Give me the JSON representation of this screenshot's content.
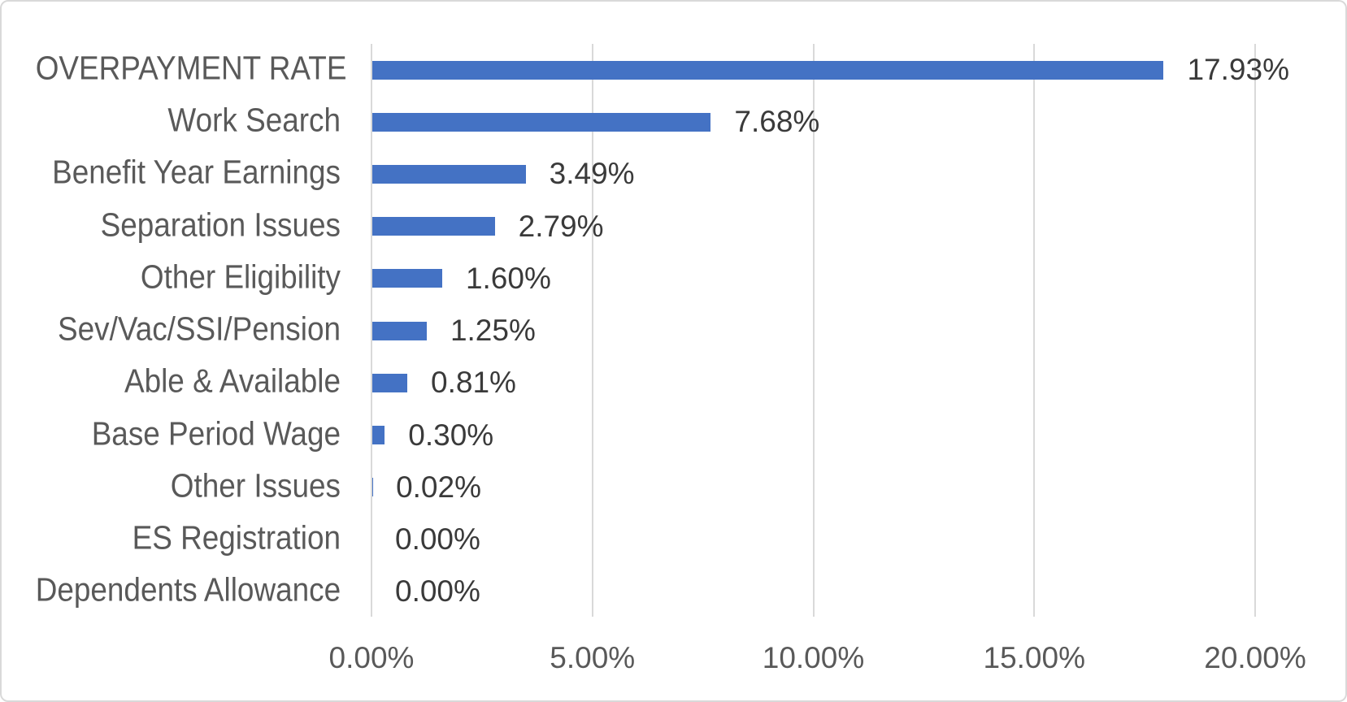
{
  "chart_data": {
    "type": "bar",
    "orientation": "horizontal",
    "title": "",
    "xlabel": "",
    "ylabel": "",
    "categories": [
      "OVERPAYMENT RATE",
      "Work Search",
      "Benefit Year Earnings",
      "Separation Issues",
      "Other Eligibility",
      "Sev/Vac/SSI/Pension",
      "Able & Available",
      "Base Period Wage",
      "Other Issues",
      "ES Registration",
      "Dependents Allowance"
    ],
    "values": [
      17.93,
      7.68,
      3.49,
      2.79,
      1.6,
      1.25,
      0.81,
      0.3,
      0.02,
      0.0,
      0.0
    ],
    "value_labels": [
      "17.93%",
      "7.68%",
      "3.49%",
      "2.79%",
      "1.60%",
      "1.25%",
      "0.81%",
      "0.30%",
      "0.02%",
      "0.00%",
      "0.00%"
    ],
    "x_ticks": [
      0,
      5,
      10,
      15,
      20
    ],
    "x_tick_labels": [
      "0.00%",
      "5.00%",
      "10.00%",
      "15.00%",
      "20.00%"
    ],
    "xlim": [
      0,
      20
    ],
    "grid": "vertical-major",
    "legend": "none",
    "colors": {
      "bar_fill": "#4472c4",
      "gridline": "#d9d9d9",
      "axis_line": "#d9d9d9",
      "category_text": "#595959",
      "tick_text": "#595959",
      "data_label_text": "#3a3a3a",
      "background": "#ffffff",
      "border": "#d9d9d9"
    }
  }
}
